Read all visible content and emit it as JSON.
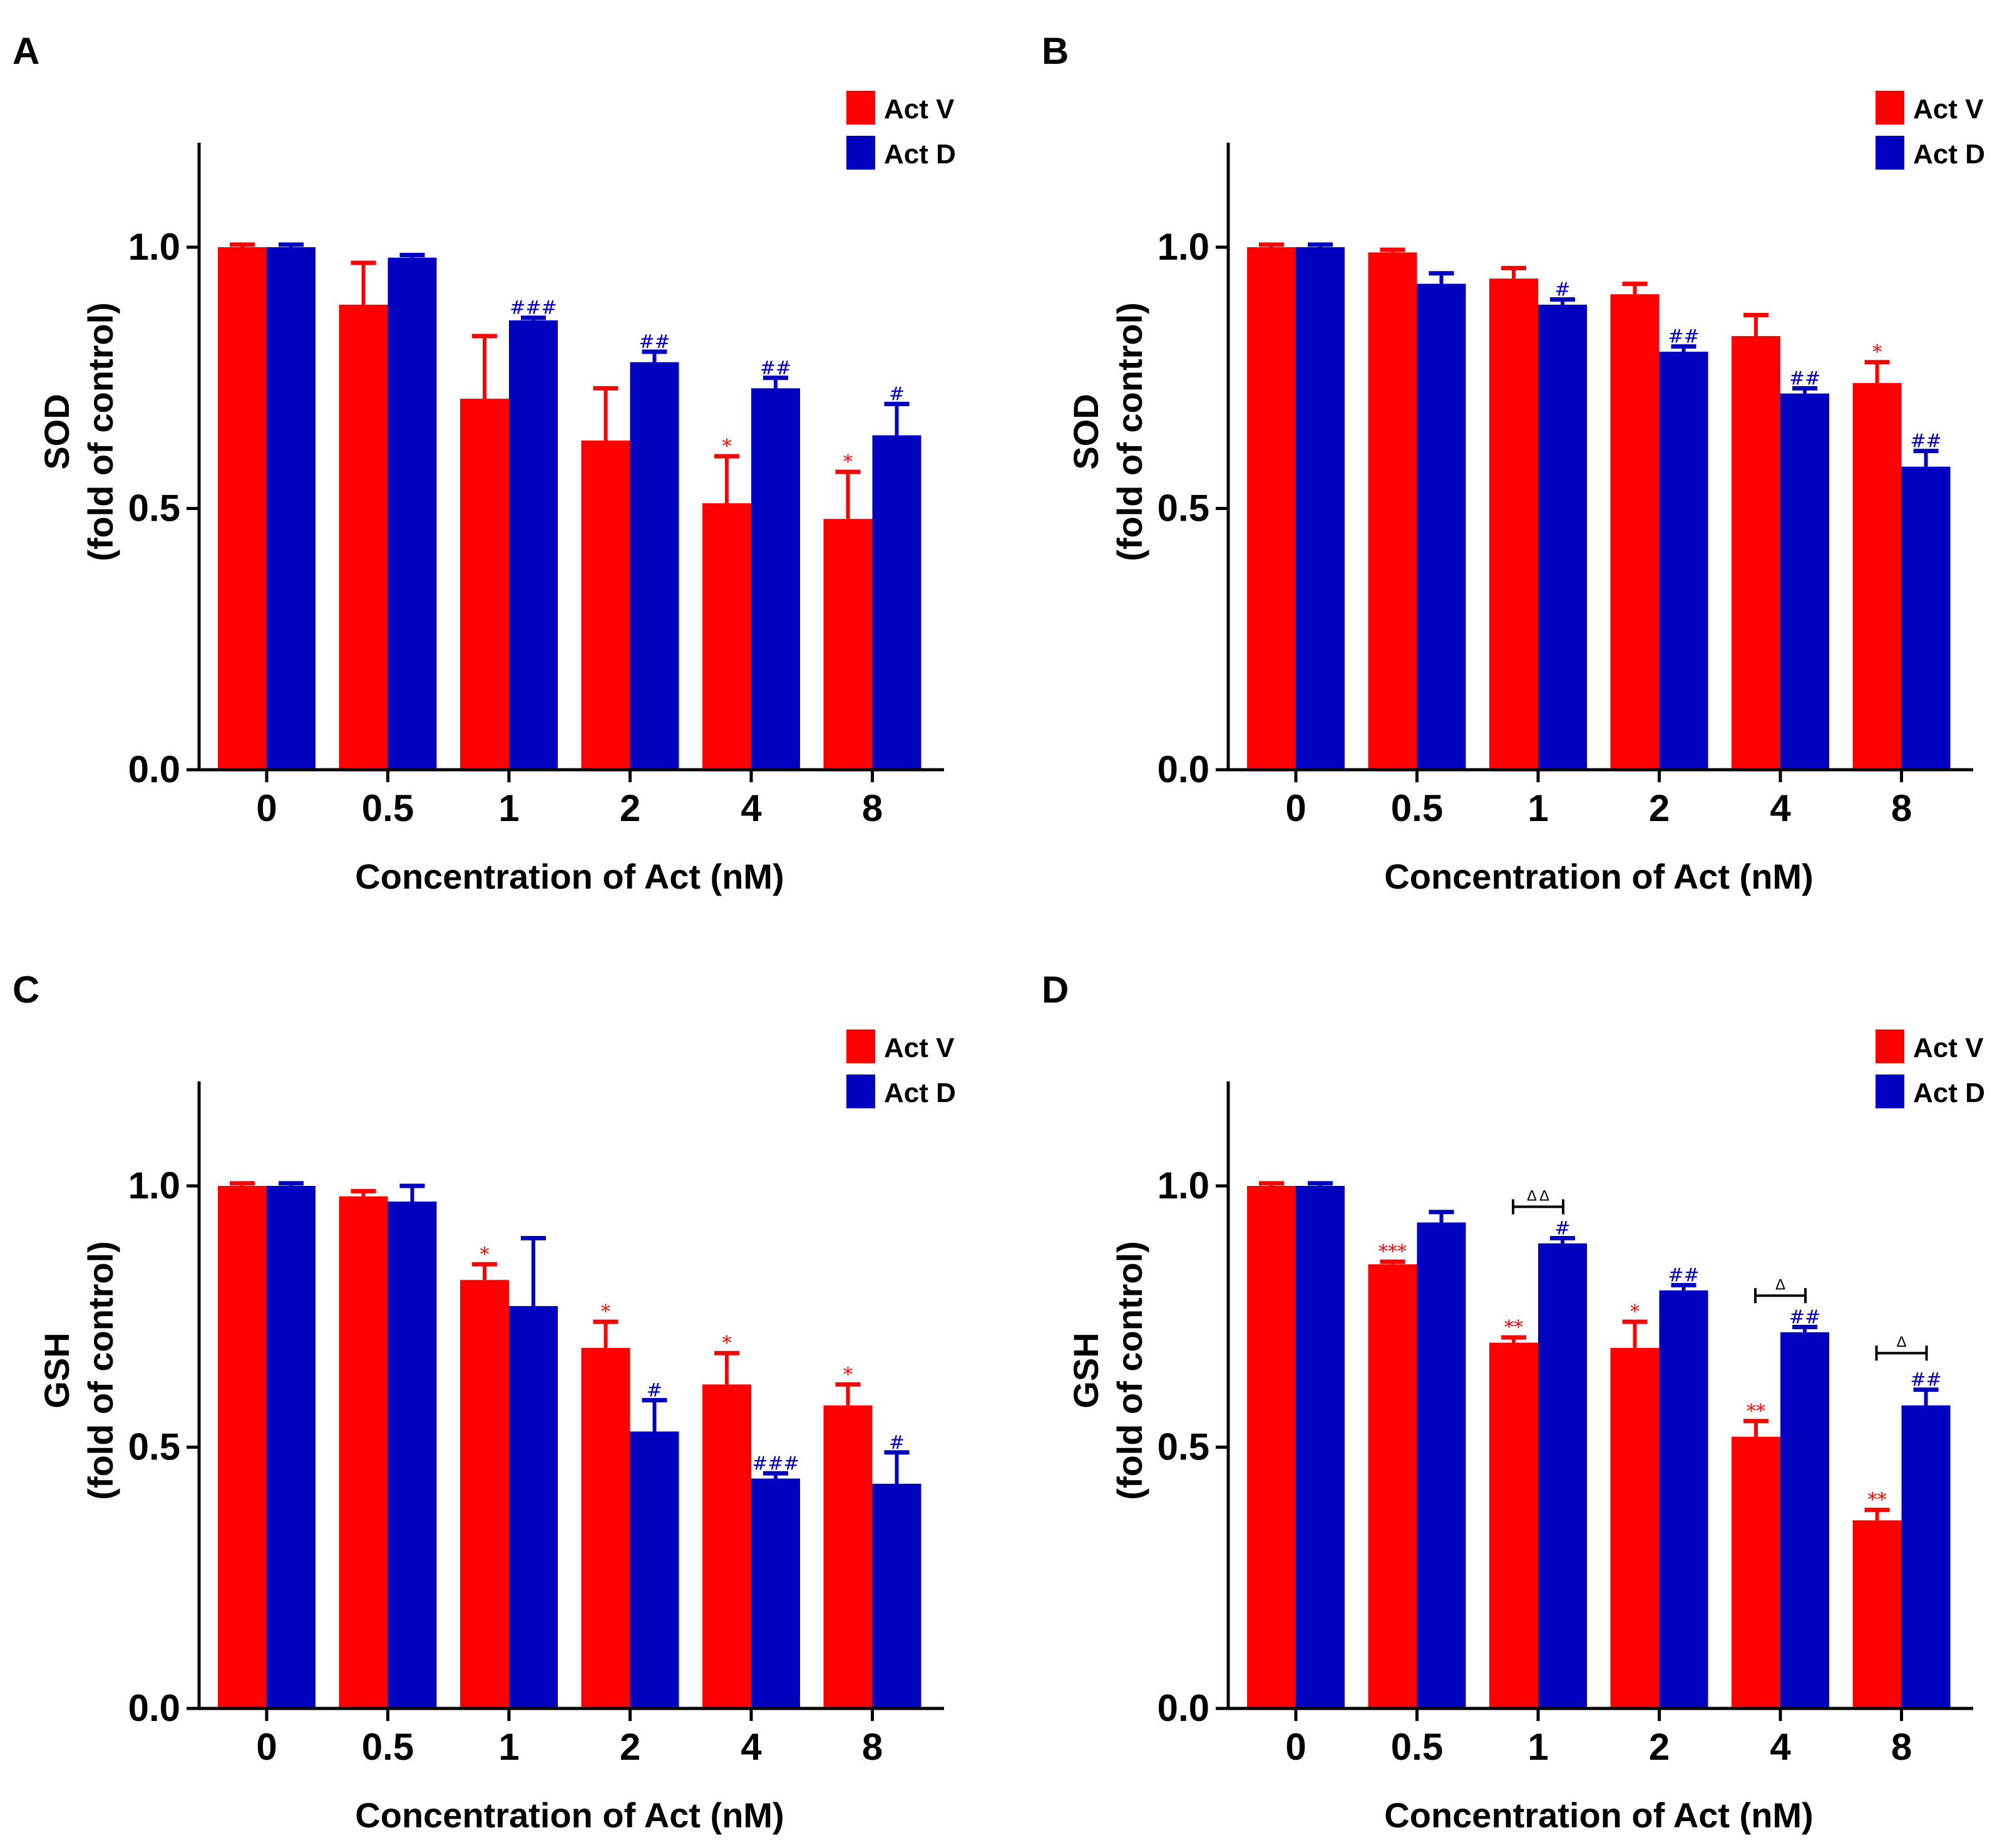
{
  "colors": {
    "act_v": "#ff0000",
    "act_d": "#0000c0",
    "axis": "#000000",
    "bracket": "#000000"
  },
  "chart_data": [
    {
      "type": "bar",
      "panel": "A",
      "ylabel_line1": "SOD",
      "ylabel_line2": "(fold of control)",
      "xlabel": "Concentration of Act (nM)",
      "categories": [
        "0",
        "0.5",
        "1",
        "2",
        "4",
        "8"
      ],
      "ylim": [
        0,
        1.2
      ],
      "yticks": [
        "0.0",
        "0.5",
        "1.0"
      ],
      "series": [
        {
          "name": "Act V",
          "values": [
            1.0,
            0.89,
            0.71,
            0.63,
            0.51,
            0.48
          ],
          "errors": [
            0.005,
            0.08,
            0.12,
            0.1,
            0.09,
            0.09
          ],
          "sig": [
            "",
            "",
            "",
            "",
            "*",
            "*"
          ]
        },
        {
          "name": "Act D",
          "values": [
            1.0,
            0.98,
            0.86,
            0.78,
            0.73,
            0.64
          ],
          "errors": [
            0.005,
            0.005,
            0.005,
            0.02,
            0.02,
            0.06
          ],
          "sig": [
            "",
            "",
            "###",
            "##",
            "##",
            "#"
          ]
        }
      ],
      "brackets": []
    },
    {
      "type": "bar",
      "panel": "B",
      "ylabel_line1": "SOD",
      "ylabel_line2": "(fold of control)",
      "xlabel": "Concentration of Act (nM)",
      "categories": [
        "0",
        "0.5",
        "1",
        "2",
        "4",
        "8"
      ],
      "ylim": [
        0,
        1.2
      ],
      "yticks": [
        "0.0",
        "0.5",
        "1.0"
      ],
      "series": [
        {
          "name": "Act V",
          "values": [
            1.0,
            0.99,
            0.94,
            0.91,
            0.83,
            0.74
          ],
          "errors": [
            0.005,
            0.005,
            0.02,
            0.02,
            0.04,
            0.04
          ],
          "sig": [
            "",
            "",
            "",
            "",
            "",
            "*"
          ]
        },
        {
          "name": "Act D",
          "values": [
            1.0,
            0.93,
            0.89,
            0.8,
            0.72,
            0.58
          ],
          "errors": [
            0.005,
            0.02,
            0.01,
            0.01,
            0.01,
            0.03
          ],
          "sig": [
            "",
            "",
            "#",
            "##",
            "##",
            "##"
          ]
        }
      ],
      "brackets": []
    },
    {
      "type": "bar",
      "panel": "C",
      "ylabel_line1": "GSH",
      "ylabel_line2": "(fold of control)",
      "xlabel": "Concentration of Act (nM)",
      "categories": [
        "0",
        "0.5",
        "1",
        "2",
        "4",
        "8"
      ],
      "ylim": [
        0,
        1.2
      ],
      "yticks": [
        "0.0",
        "0.5",
        "1.0"
      ],
      "series": [
        {
          "name": "Act V",
          "values": [
            1.0,
            0.98,
            0.82,
            0.69,
            0.62,
            0.58
          ],
          "errors": [
            0.005,
            0.01,
            0.03,
            0.05,
            0.06,
            0.04
          ],
          "sig": [
            "",
            "",
            "*",
            "*",
            "*",
            "*"
          ]
        },
        {
          "name": "Act D",
          "values": [
            1.0,
            0.97,
            0.77,
            0.53,
            0.44,
            0.43
          ],
          "errors": [
            0.005,
            0.03,
            0.13,
            0.06,
            0.01,
            0.06
          ],
          "sig": [
            "",
            "",
            "",
            "#",
            "###",
            "#"
          ]
        }
      ],
      "brackets": []
    },
    {
      "type": "bar",
      "panel": "D",
      "ylabel_line1": "GSH",
      "ylabel_line2": "(fold of control)",
      "xlabel": "Concentration of Act (nM)",
      "categories": [
        "0",
        "0.5",
        "1",
        "2",
        "4",
        "8"
      ],
      "ylim": [
        0,
        1.2
      ],
      "yticks": [
        "0.0",
        "0.5",
        "1.0"
      ],
      "series": [
        {
          "name": "Act V",
          "values": [
            1.0,
            0.85,
            0.7,
            0.69,
            0.52,
            0.36
          ],
          "errors": [
            0.005,
            0.005,
            0.01,
            0.05,
            0.03,
            0.02
          ],
          "sig": [
            "",
            "***",
            "**",
            "*",
            "**",
            "**"
          ]
        },
        {
          "name": "Act D",
          "values": [
            1.0,
            0.93,
            0.89,
            0.8,
            0.72,
            0.58
          ],
          "errors": [
            0.005,
            0.02,
            0.01,
            0.01,
            0.01,
            0.03
          ],
          "sig": [
            "",
            "",
            "#",
            "##",
            "##",
            "##"
          ]
        }
      ],
      "brackets": [
        {
          "category": 2,
          "level": 0.96,
          "label": "Δ Δ"
        },
        {
          "category": 4,
          "level": 0.79,
          "label": "Δ"
        },
        {
          "category": 5,
          "level": 0.68,
          "label": "Δ"
        }
      ]
    }
  ]
}
